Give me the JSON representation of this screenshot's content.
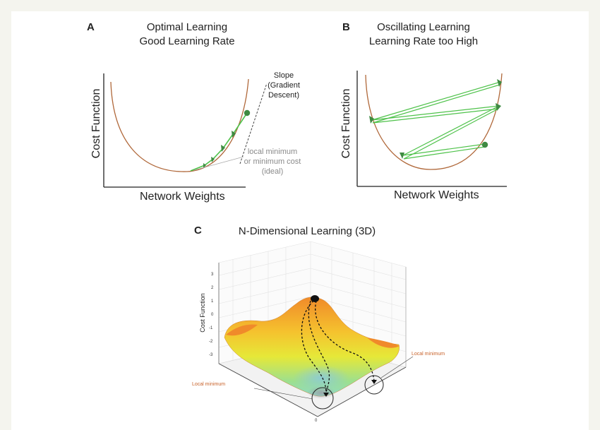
{
  "panel_a": {
    "letter": "A",
    "title_line1": "Optimal Learning",
    "title_line2": "Good Learning Rate",
    "y_label": "Cost Function",
    "x_label": "Network Weights",
    "slope_line1": "Slope",
    "slope_line2": "(Gradient",
    "slope_line3": "Descent)",
    "min_line1": "local minimum",
    "min_line2": "or minimum cost",
    "min_line3": "(ideal)"
  },
  "panel_b": {
    "letter": "B",
    "title_line1": "Oscillating Learning",
    "title_line2": "Learning Rate too High",
    "y_label": "Cost Function",
    "x_label": "Network Weights"
  },
  "panel_c": {
    "letter": "C",
    "title": "N-Dimensional Learning (3D)",
    "y_label": "Cost Function",
    "ticks": [
      "3",
      "2",
      "1",
      "0",
      "-1",
      "-2",
      "-3"
    ],
    "base_tick": "0",
    "local_min_left": "Local minimum",
    "local_min_right": "Local minimum"
  },
  "colors": {
    "curve": "#b0683a",
    "green": "#4ec24a",
    "marker": "#3f8a42"
  }
}
